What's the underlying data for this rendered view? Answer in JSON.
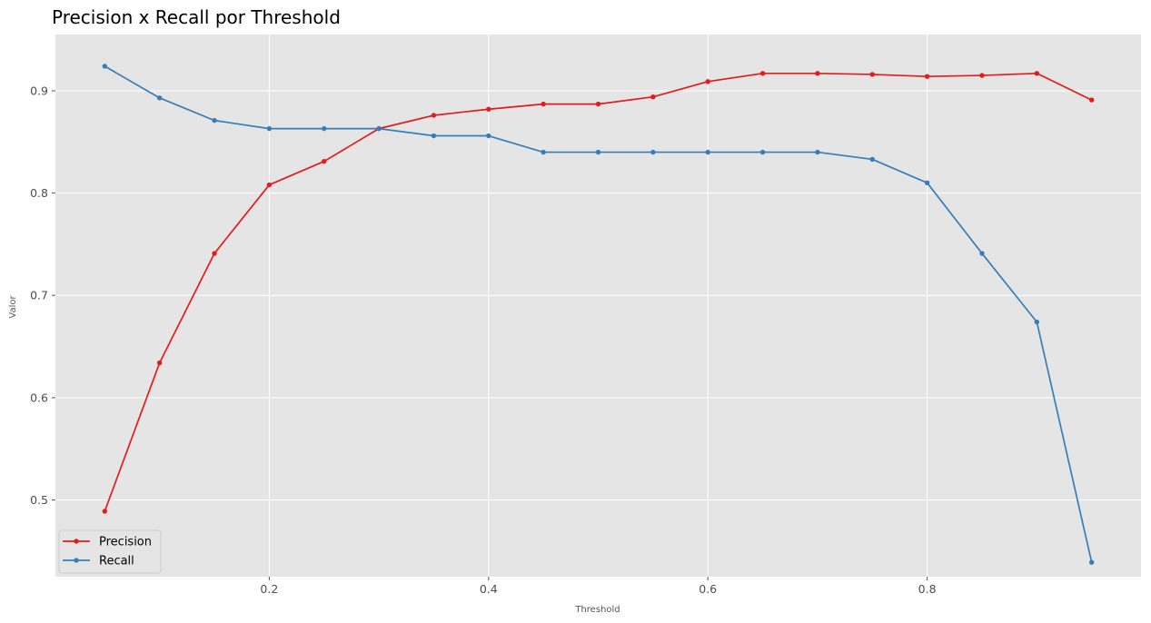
{
  "chart_data": {
    "type": "line",
    "title": "Precision x Recall por Threshold",
    "xlabel": "Threshold",
    "ylabel": "Valor",
    "xlim": [
      0.005,
      0.995
    ],
    "ylim": [
      0.425,
      0.955
    ],
    "xticks": [
      0.2,
      0.4,
      0.6,
      0.8
    ],
    "yticks": [
      0.5,
      0.6,
      0.7,
      0.8,
      0.9
    ],
    "grid": true,
    "legend_position": "lower-left",
    "x": [
      0.05,
      0.1,
      0.15,
      0.2,
      0.25,
      0.3,
      0.35,
      0.4,
      0.45,
      0.5,
      0.55,
      0.6,
      0.65,
      0.7,
      0.75,
      0.8,
      0.85,
      0.9,
      0.95
    ],
    "series": [
      {
        "name": "Precision",
        "color": "#e41a1c",
        "marker": "circle",
        "values": [
          0.489,
          0.634,
          0.741,
          0.808,
          0.831,
          0.863,
          0.876,
          0.882,
          0.887,
          0.887,
          0.894,
          0.909,
          0.917,
          0.917,
          0.916,
          0.914,
          0.915,
          0.917,
          0.891
        ]
      },
      {
        "name": "Recall",
        "color": "#377eb8",
        "marker": "circle",
        "values": [
          0.924,
          0.893,
          0.871,
          0.863,
          0.863,
          0.863,
          0.856,
          0.856,
          0.84,
          0.84,
          0.84,
          0.84,
          0.84,
          0.84,
          0.833,
          0.81,
          0.741,
          0.674,
          0.439
        ]
      }
    ]
  }
}
